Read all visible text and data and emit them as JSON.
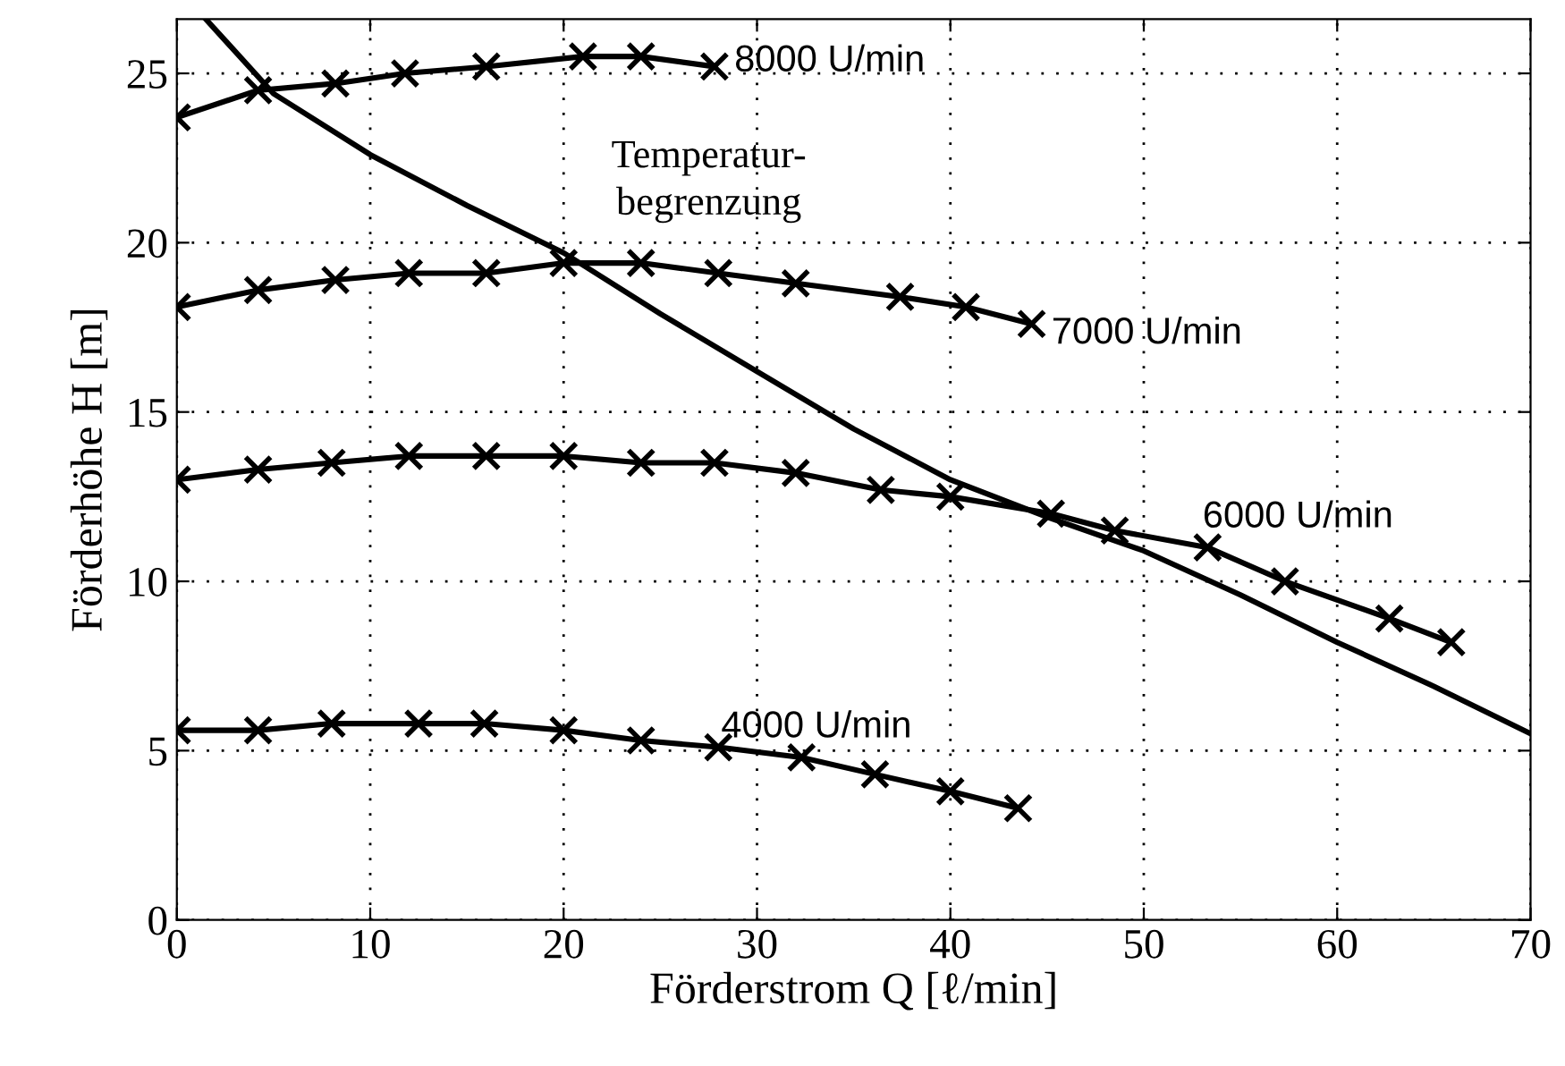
{
  "chart_data": {
    "type": "line",
    "xlabel": "Förderstrom Q [ℓ/min]",
    "ylabel": "Förderhöhe H [m]",
    "xlim": [
      0,
      70
    ],
    "ylim": [
      0,
      26.6
    ],
    "xticks": [
      0,
      10,
      20,
      30,
      40,
      50,
      60,
      70
    ],
    "yticks": [
      0,
      5,
      10,
      15,
      20,
      25
    ],
    "grid": true,
    "line_style": "solid",
    "series": [
      {
        "name": "8000 U/min",
        "color": "#000000",
        "marker": "cross",
        "x": [
          0,
          4.2,
          8.2,
          11.8,
          16,
          21,
          24,
          27.8
        ],
        "values": [
          23.7,
          24.5,
          24.7,
          25.0,
          25.2,
          25.5,
          25.5,
          25.2
        ]
      },
      {
        "name": "7000 U/min",
        "color": "#000000",
        "marker": "cross",
        "x": [
          0,
          4.2,
          8.2,
          12,
          16,
          20,
          24,
          28,
          32,
          37.4,
          40.8,
          44.2
        ],
        "values": [
          18.1,
          18.6,
          18.9,
          19.1,
          19.1,
          19.4,
          19.4,
          19.1,
          18.8,
          18.4,
          18.1,
          17.6
        ]
      },
      {
        "name": "6000 U/min",
        "color": "#000000",
        "marker": "cross",
        "x": [
          0,
          4.2,
          8,
          12,
          16,
          20,
          24,
          27.8,
          32,
          36.4,
          40,
          45.2,
          48.5,
          53.3,
          57.3,
          62.7,
          65.9
        ],
        "values": [
          13.0,
          13.3,
          13.5,
          13.7,
          13.7,
          13.7,
          13.5,
          13.5,
          13.2,
          12.7,
          12.5,
          12.0,
          11.5,
          11.0,
          10.0,
          8.9,
          8.2
        ]
      },
      {
        "name": "4000 U/min",
        "color": "#000000",
        "marker": "cross",
        "x": [
          0,
          4.2,
          8,
          12.5,
          15.9,
          20,
          24,
          28,
          32.3,
          36.1,
          40,
          43.5
        ],
        "values": [
          5.6,
          5.6,
          5.8,
          5.8,
          5.8,
          5.6,
          5.3,
          5.1,
          4.8,
          4.3,
          3.8,
          3.3
        ]
      },
      {
        "color": "#000000",
        "marker": "none",
        "x": [
          1.5,
          5,
          10,
          15,
          20,
          25,
          30,
          35,
          40,
          45,
          50,
          55,
          60,
          65,
          70
        ],
        "values": [
          26.6,
          24.4,
          22.6,
          21.1,
          19.7,
          17.9,
          16.2,
          14.5,
          13.0,
          11.9,
          10.9,
          9.6,
          8.2,
          6.9,
          5.5
        ]
      }
    ],
    "annotations": [
      "Temperatur-\nbegrenzung"
    ]
  }
}
